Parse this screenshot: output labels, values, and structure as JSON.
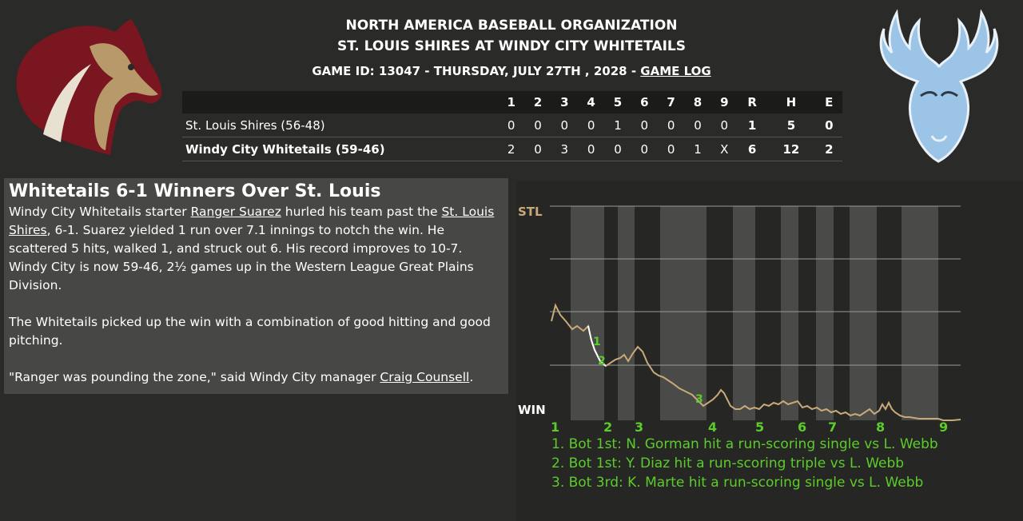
{
  "header": {
    "org": "NORTH AMERICA BASEBALL ORGANIZATION",
    "matchup": "ST. LOUIS SHIRES AT WINDY CITY WHITETAILS",
    "game_info": "GAME ID: 13047 - THURSDAY, JULY 27TH , 2028 - ",
    "game_log_link": "GAME LOG"
  },
  "logos": {
    "away": "stallion-logo",
    "home": "deer-logo"
  },
  "linescore": {
    "headers": [
      "1",
      "2",
      "3",
      "4",
      "5",
      "6",
      "7",
      "8",
      "9",
      "R",
      "H",
      "E"
    ],
    "rows": [
      {
        "team": "St. Louis Shires (56-48)",
        "innings": [
          "0",
          "0",
          "0",
          "0",
          "1",
          "0",
          "0",
          "0",
          "0"
        ],
        "r": "1",
        "h": "5",
        "e": "0"
      },
      {
        "team": "Windy City Whitetails (59-46)",
        "innings": [
          "2",
          "0",
          "3",
          "0",
          "0",
          "0",
          "0",
          "1",
          "X"
        ],
        "r": "6",
        "h": "12",
        "e": "2"
      }
    ]
  },
  "story": {
    "headline": "Whitetails 6-1 Winners Over St. Louis",
    "p1_a": "Windy City Whitetails starter ",
    "p1_link1": "Ranger Suarez",
    "p1_b": " hurled his team past the ",
    "p1_link2": "St. Louis Shires",
    "p1_c": ", 6-1. Suarez yielded 1 run over 7.1 innings to notch the win. He scattered 5 hits, walked 1, and struck out 6. His record improves to 10-7. Windy City is now 59-46, 2½ games up in the Western League Great Plains Division.",
    "p2": "The Whitetails picked up the win with a combination of good hitting and good pitching.",
    "p3_a": "\"Ranger was pounding the zone,\" said Windy City manager ",
    "p3_link": "Craig Counsell",
    "p3_b": "."
  },
  "win_prob": {
    "top_label": "STL",
    "bottom_label": "WIN",
    "inning_labels": [
      "1",
      "2",
      "3",
      "4",
      "5",
      "6",
      "7",
      "8",
      "9"
    ],
    "markers": [
      "1",
      "2",
      "3"
    ],
    "notes": [
      "1. Bot 1st: N. Gorman hit a run-scoring single vs L. Webb",
      "2. Bot 1st: Y. Diaz hit a run-scoring triple vs L. Webb",
      "3. Bot 3rd: K. Marte hit a run-scoring single vs L. Webb"
    ],
    "colors": {
      "away": "#c8aa78",
      "home": "#ffffff",
      "accent": "#5ccc2c"
    }
  }
}
